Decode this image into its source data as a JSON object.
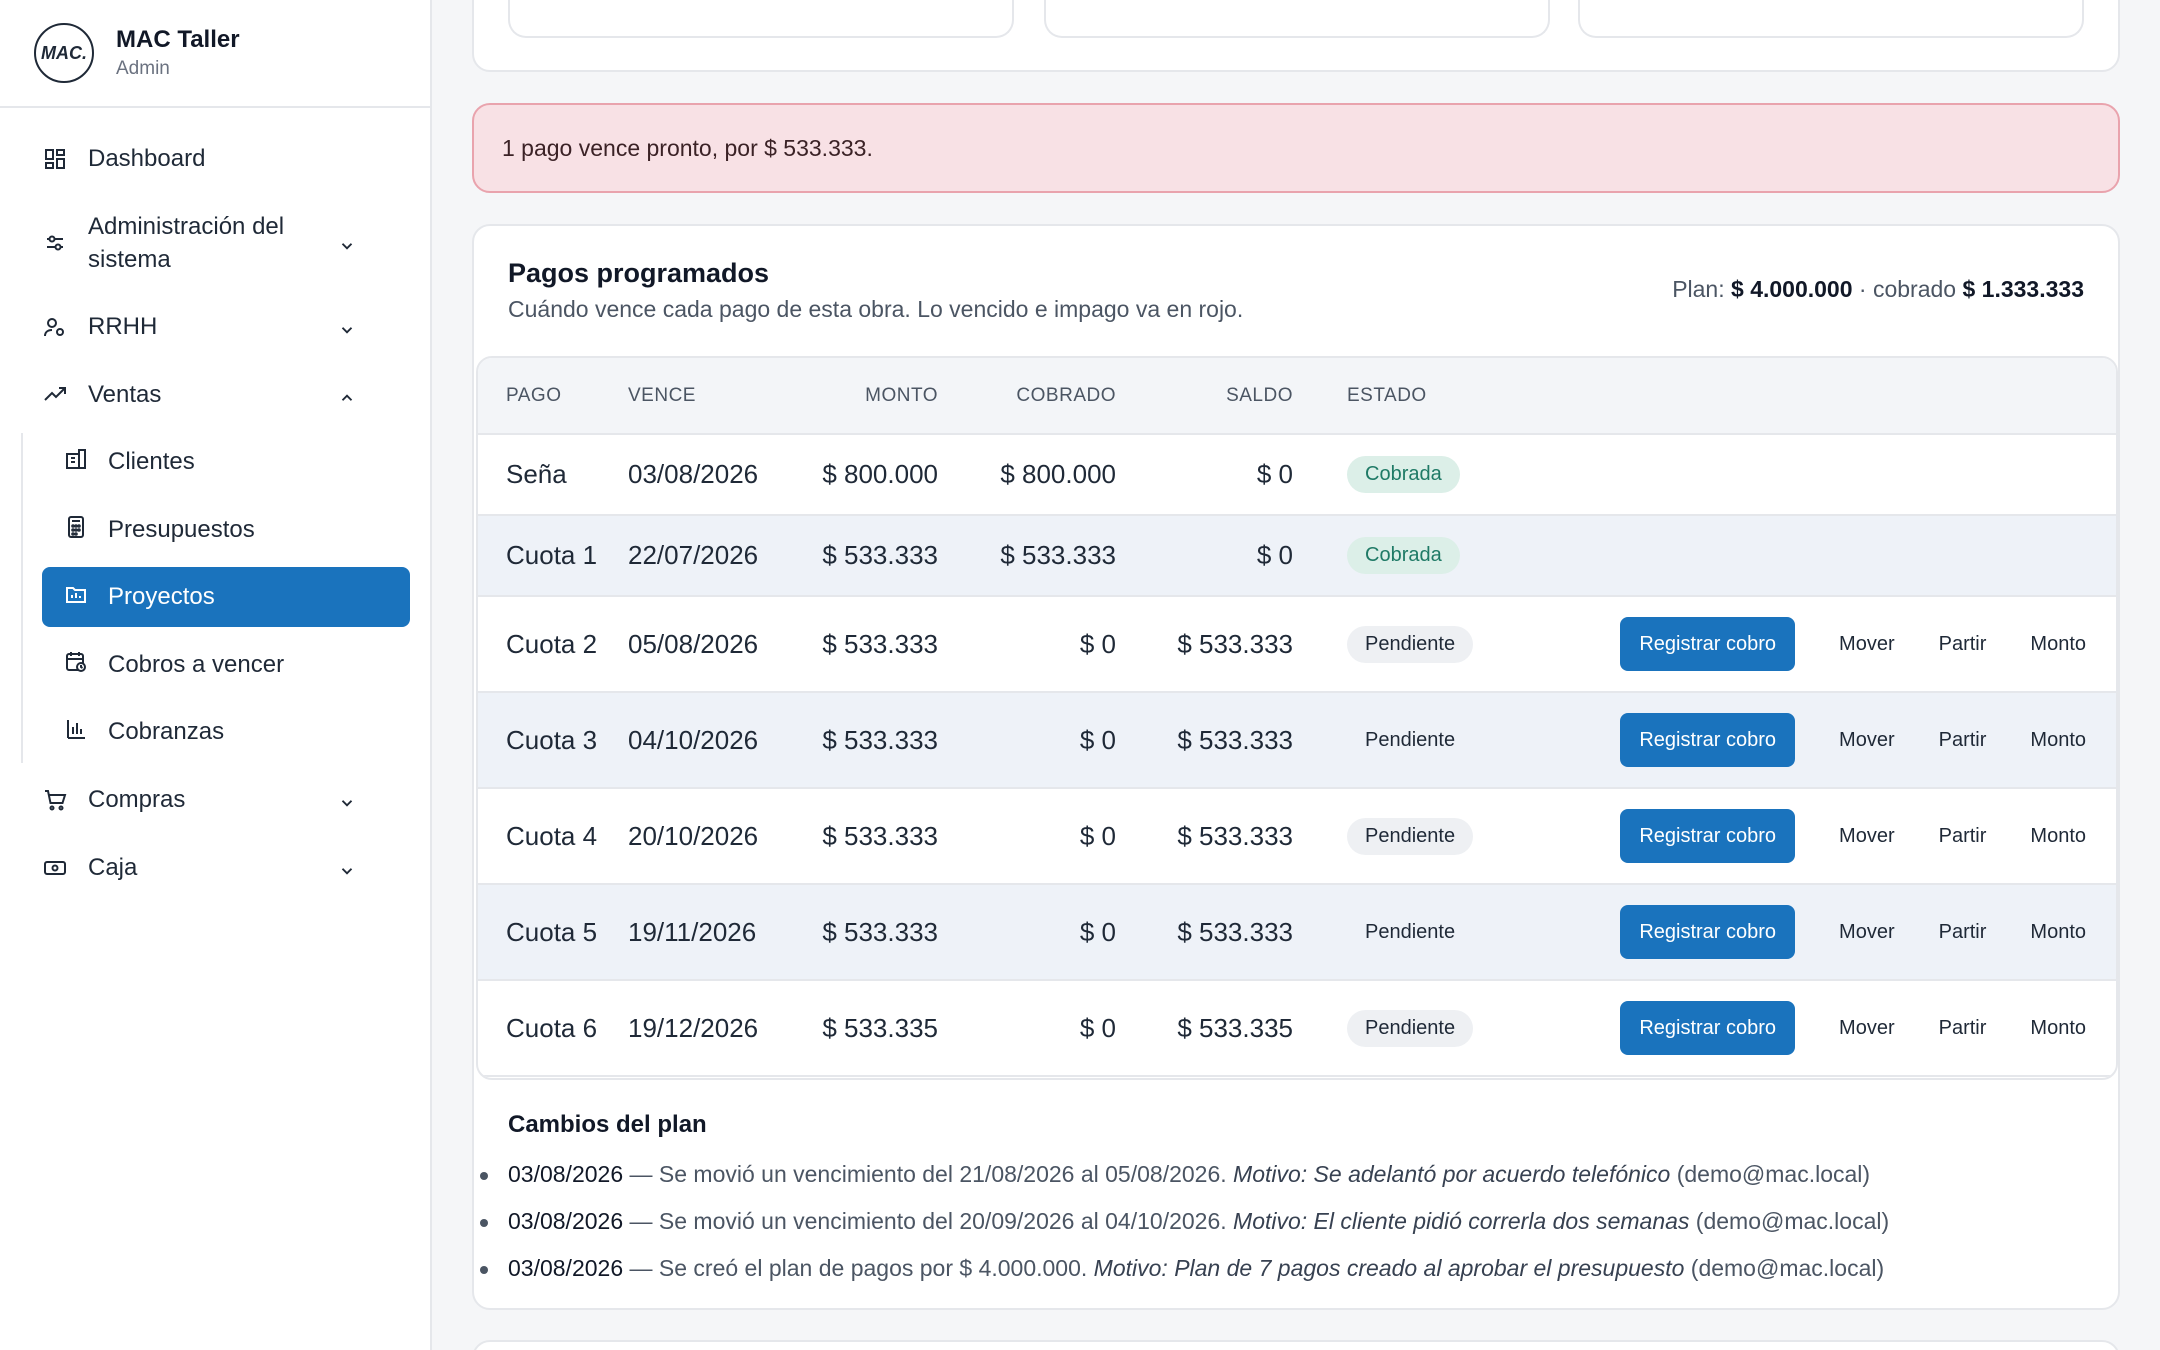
{
  "brand": {
    "logo_text": "MAC.",
    "name": "MAC Taller",
    "role": "Admin"
  },
  "nav": {
    "dashboard": "Dashboard",
    "admin": "Administración del sistema",
    "admin_line1": "Administración del",
    "admin_line2": "sistema",
    "rrhh": "RRHH",
    "ventas": "Ventas",
    "ventas_sub": [
      "Clientes",
      "Presupuestos",
      "Proyectos",
      "Cobros a vencer",
      "Cobranzas"
    ],
    "active_item": "Proyectos",
    "compras": "Compras",
    "caja": "Caja"
  },
  "alert": {
    "text": "1 pago vence pronto, por $ 533.333."
  },
  "pagos": {
    "title": "Pagos programados",
    "subtitle": "Cuándo vence cada pago de esta obra. Lo vencido e impago va en rojo.",
    "plan_label": "Plan:",
    "plan_value": "$ 4.000.000",
    "cobrado_label": "· cobrado",
    "cobrado_value": "$ 1.333.333",
    "columns": [
      "PAGO",
      "VENCE",
      "MONTO",
      "COBRADO",
      "SALDO",
      "ESTADO"
    ],
    "rows": [
      {
        "pago": "Seña",
        "vence": "03/08/2026",
        "monto": "$ 800.000",
        "cobrado": "$ 800.000",
        "saldo": "$ 0",
        "estado": "Cobrada"
      },
      {
        "pago": "Cuota 1",
        "vence": "22/07/2026",
        "monto": "$ 533.333",
        "cobrado": "$ 533.333",
        "saldo": "$ 0",
        "estado": "Cobrada"
      },
      {
        "pago": "Cuota 2",
        "vence": "05/08/2026",
        "monto": "$ 533.333",
        "cobrado": "$ 0",
        "saldo": "$ 533.333",
        "estado": "Pendiente"
      },
      {
        "pago": "Cuota 3",
        "vence": "04/10/2026",
        "monto": "$ 533.333",
        "cobrado": "$ 0",
        "saldo": "$ 533.333",
        "estado": "Pendiente"
      },
      {
        "pago": "Cuota 4",
        "vence": "20/10/2026",
        "monto": "$ 533.333",
        "cobrado": "$ 0",
        "saldo": "$ 533.333",
        "estado": "Pendiente"
      },
      {
        "pago": "Cuota 5",
        "vence": "19/11/2026",
        "monto": "$ 533.333",
        "cobrado": "$ 0",
        "saldo": "$ 533.333",
        "estado": "Pendiente"
      },
      {
        "pago": "Cuota 6",
        "vence": "19/12/2026",
        "monto": "$ 533.335",
        "cobrado": "$ 0",
        "saldo": "$ 533.335",
        "estado": "Pendiente"
      }
    ],
    "actions": {
      "register": "Registrar cobro",
      "move": "Mover",
      "split": "Partir",
      "amount": "Monto"
    }
  },
  "changes": {
    "title": "Cambios del plan",
    "items": [
      {
        "date": "03/08/2026",
        "text": " — Se movió un vencimiento del 21/08/2026 al 05/08/2026. ",
        "motivo": "Motivo: Se adelantó por acuerdo telefónico",
        "user": " (demo@mac.local)"
      },
      {
        "date": "03/08/2026",
        "text": " — Se movió un vencimiento del 20/09/2026 al 04/10/2026. ",
        "motivo": "Motivo: El cliente pidió correrla dos semanas",
        "user": " (demo@mac.local)"
      },
      {
        "date": "03/08/2026",
        "text": " — Se creó el plan de pagos por $ 4.000.000. ",
        "motivo": "Motivo: Plan de 7 pagos creado al aprobar el presupuesto",
        "user": " (demo@mac.local)"
      }
    ]
  },
  "colors": {
    "primary": "#1a73bd",
    "alert_bg": "#f8e1e5",
    "alert_border": "#e9a3ad",
    "badge_ok_bg": "#dcefe8",
    "badge_ok_text": "#1f7a66"
  }
}
